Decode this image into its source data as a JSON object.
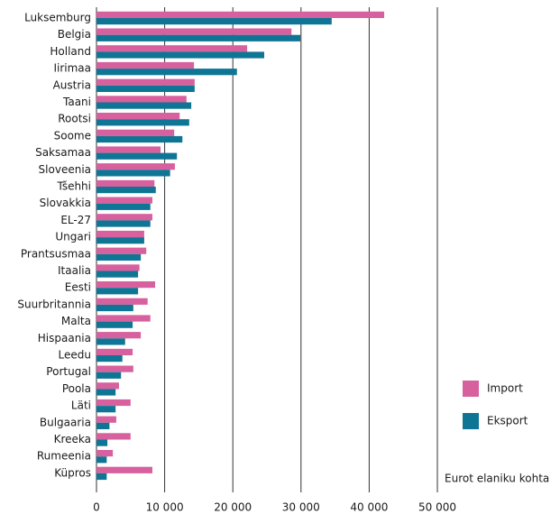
{
  "chart_data": {
    "type": "hbar",
    "categories": [
      "Luksemburg",
      "Belgia",
      "Holland",
      "Iirimaa",
      "Austria",
      "Taani",
      "Rootsi",
      "Soome",
      "Saksamaa",
      "Sloveenia",
      "Tšehhi",
      "Slovakkia",
      "EL-27",
      "Ungari",
      "Prantsusmaa",
      "Itaalia",
      "Eesti",
      "Suurbritannia",
      "Malta",
      "Hispaania",
      "Leedu",
      "Portugal",
      "Poola",
      "Läti",
      "Bulgaaria",
      "Kreeka",
      "Rumeenia",
      "Küpros"
    ],
    "series": [
      {
        "name": "Import",
        "color": "#d7609e",
        "values": [
          42200,
          28600,
          22100,
          14300,
          14400,
          13200,
          12200,
          11400,
          9400,
          11500,
          8500,
          8200,
          8200,
          7000,
          7300,
          6300,
          8600,
          7500,
          7900,
          6500,
          5300,
          5400,
          3300,
          5000,
          2900,
          5000,
          2400,
          8200
        ]
      },
      {
        "name": "Eksport",
        "color": "#0f7595",
        "values": [
          34500,
          29900,
          24600,
          20600,
          14400,
          13900,
          13600,
          12600,
          11800,
          10800,
          8700,
          7900,
          7900,
          7000,
          6500,
          6100,
          6100,
          5400,
          5300,
          4200,
          3800,
          3600,
          2800,
          2800,
          1900,
          1600,
          1500,
          1500
        ]
      }
    ],
    "xlabel": "Eurot elaniku kohta",
    "xlim": [
      0,
      50000
    ],
    "xticks": [
      0,
      {
        "value": 10000,
        "label": "10 000"
      },
      {
        "value": 20000,
        "label": "20 000"
      },
      {
        "value": 30000,
        "label": "30 000"
      },
      {
        "value": 40000,
        "label": "40 000"
      },
      {
        "value": 50000,
        "label": "50 000"
      }
    ],
    "grid": true
  }
}
